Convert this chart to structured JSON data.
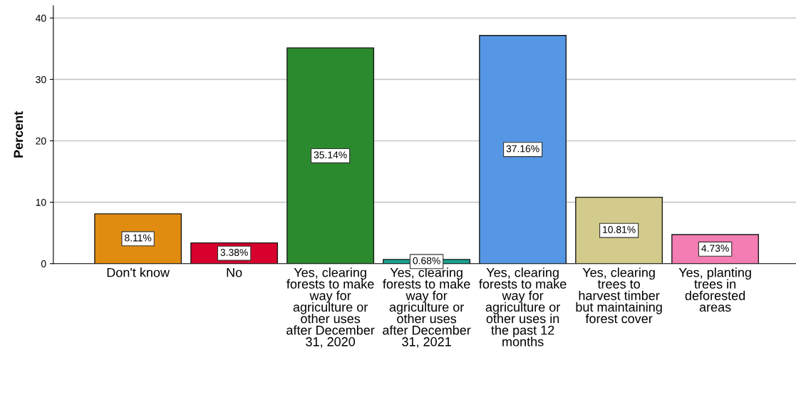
{
  "chart_data": {
    "type": "bar",
    "ylabel": "Percent",
    "categories": [
      "Don't know",
      "No",
      "Yes, clearing forests to make way for agriculture or other uses after December 31, 2020",
      "Yes, clearing forests to make way for agriculture or other uses after December 31, 2021",
      "Yes, clearing forests to make way for agriculture or other uses in the past 12 months",
      "Yes, clearing trees to harvest timber but maintaining forest cover",
      "Yes, planting trees in deforested areas"
    ],
    "values": [
      8.11,
      3.38,
      35.14,
      0.68,
      37.16,
      10.81,
      4.73
    ],
    "colors": [
      "#e08c10",
      "#d8002c",
      "#2b8a2e",
      "#1aa38e",
      "#5597e4",
      "#d3cb8b",
      "#f47db3"
    ],
    "value_labels": [
      "8.11%",
      "3.38%",
      "35.14%",
      "0.68%",
      "37.16%",
      "10.81%",
      "4.73%"
    ],
    "ylim": [
      0,
      42
    ],
    "yticks": [
      0,
      10,
      20,
      30,
      40
    ],
    "grid": "y",
    "legend": false
  }
}
